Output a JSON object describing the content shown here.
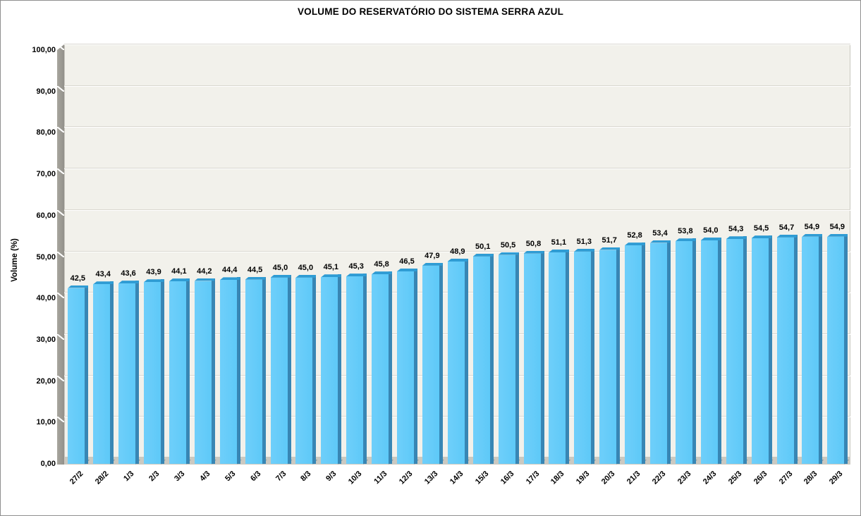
{
  "chart_data": {
    "type": "bar",
    "title": "VOLUME DO RESERVATÓRIO DO SISTEMA SERRA AZUL",
    "xlabel": "",
    "ylabel": "Volume (%)",
    "ylim": [
      0,
      100
    ],
    "ytick_step": 10,
    "ytick_labels": [
      "0,00",
      "10,00",
      "20,00",
      "30,00",
      "40,00",
      "50,00",
      "60,00",
      "70,00",
      "80,00",
      "90,00",
      "100,00"
    ],
    "grid": true,
    "legend": "none",
    "categories": [
      "27/2",
      "28/2",
      "1/3",
      "2/3",
      "3/3",
      "4/3",
      "5/3",
      "6/3",
      "7/3",
      "8/3",
      "9/3",
      "10/3",
      "11/3",
      "12/3",
      "13/3",
      "14/3",
      "15/3",
      "16/3",
      "17/3",
      "18/3",
      "19/3",
      "20/3",
      "21/3",
      "22/3",
      "23/3",
      "24/3",
      "25/3",
      "26/3",
      "27/3",
      "28/3",
      "29/3"
    ],
    "values": [
      42.5,
      43.4,
      43.6,
      43.9,
      44.1,
      44.2,
      44.4,
      44.5,
      45.0,
      45.0,
      45.1,
      45.3,
      45.8,
      46.5,
      47.9,
      48.9,
      50.1,
      50.5,
      50.8,
      51.1,
      51.3,
      51.7,
      52.8,
      53.4,
      53.8,
      54.0,
      54.3,
      54.5,
      54.7,
      54.9,
      54.9
    ],
    "value_labels": [
      "42,5",
      "43,4",
      "43,6",
      "43,9",
      "44,1",
      "44,2",
      "44,4",
      "44,5",
      "45,0",
      "45,0",
      "45,1",
      "45,3",
      "45,8",
      "46,5",
      "47,9",
      "48,9",
      "50,1",
      "50,5",
      "50,8",
      "51,1",
      "51,3",
      "51,7",
      "52,8",
      "53,4",
      "53,8",
      "54,0",
      "54,3",
      "54,5",
      "54,7",
      "54,9",
      "54,9"
    ],
    "style": {
      "bar_fill": "#5EC9F8",
      "bar_fill_light": "#6FCFFA",
      "bar_side": "#3886B4",
      "bar_cap": "#2F9CD4",
      "plot_bg": "#F2F1EB",
      "plot_border": "#C9C7BF",
      "wall": "#A8A69E",
      "wall_dark": "#92908A",
      "floor": "#CBC9C1",
      "gridline": "#D9D7CF",
      "gridline_highlight": "#FFFFFF",
      "shadow": "#5E7A8C",
      "frame_border": "#8F8F8F",
      "text": "#000000"
    }
  }
}
